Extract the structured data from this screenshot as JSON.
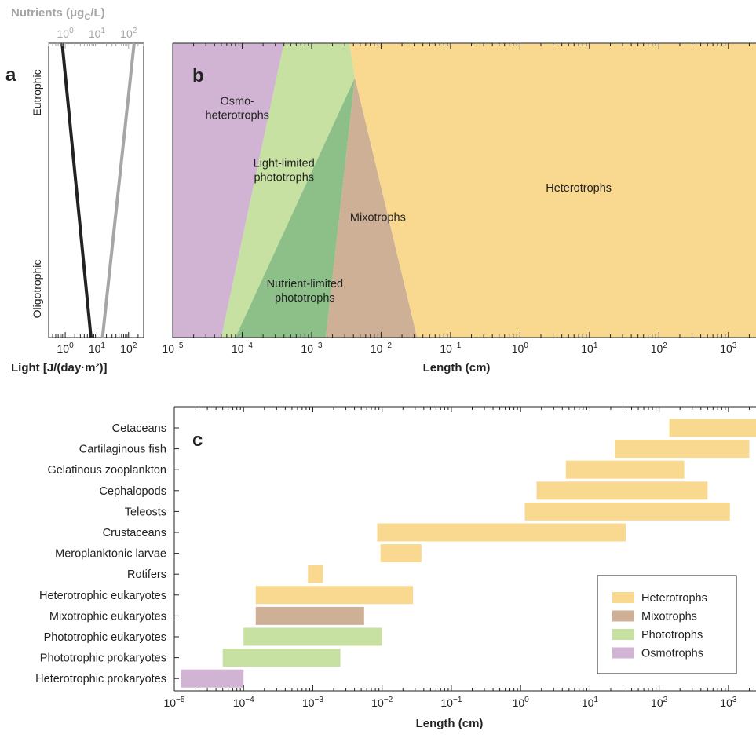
{
  "colors": {
    "heterotrophs": "#F8D98F",
    "mixotrophs": "#CDB095",
    "phototrophs": "#C6E1A2",
    "nutrient_phototrophs": "#8DBF88",
    "osmotrophs": "#D1B3D4",
    "light_line": "#222222",
    "nutrient_line": "#A6A6A6",
    "nutrient_text": "#A6A6A6"
  },
  "chart_data": [
    {
      "id": "a",
      "panel_label": "a",
      "type": "line",
      "xscale": "log",
      "xlim": [
        0.3,
        300
      ],
      "xlabel": "Light [J/(day·m²)]",
      "top_axis_label": "Nutrients (μg_C/L)",
      "xticks_bottom": [
        {
          "exp": "0"
        },
        {
          "exp": "1"
        },
        {
          "exp": "2"
        }
      ],
      "xticks_top": [
        {
          "exp": "0"
        },
        {
          "exp": "1"
        },
        {
          "exp": "2"
        }
      ],
      "y_categories": [
        "Eutrophic",
        "Oligotrophic"
      ],
      "series": [
        {
          "role": "light",
          "x_top": 0.8,
          "x_bottom": 6.5
        },
        {
          "role": "nutrients",
          "x_top": 150,
          "x_bottom": 15
        }
      ]
    },
    {
      "id": "b",
      "panel_label": "b",
      "type": "area",
      "xscale": "log",
      "xlim": [
        1e-05,
        2500
      ],
      "xlabel": "Length (cm)",
      "xticks": [
        {
          "exp": "−5"
        },
        {
          "exp": "−4"
        },
        {
          "exp": "−3"
        },
        {
          "exp": "−2"
        },
        {
          "exp": "−1"
        },
        {
          "exp": "0"
        },
        {
          "exp": "1"
        },
        {
          "exp": "2"
        },
        {
          "exp": "3"
        }
      ],
      "boundaries": {
        "osmo_light": {
          "top": 0.0004,
          "bottom": 5e-05
        },
        "light_nutrient": {
          "top": 0.0042,
          "bottom": 8e-05
        },
        "mixo_left": {
          "top": 0.0042,
          "bottom": 0.0016
        },
        "hetero_left": {
          "top": 0.0035,
          "bottom": 0.033
        }
      },
      "regions": [
        {
          "key": "osmotrophs",
          "lines": [
            "Osmo-",
            "heterotrophs"
          ],
          "lx": 8.5e-05,
          "ly": 0.22
        },
        {
          "key": "light",
          "lines": [
            "Light-limited",
            "phototrophs"
          ],
          "lx": 0.0004,
          "ly": 0.43
        },
        {
          "key": "mixotrophs",
          "lines": [
            "Mixotrophs"
          ],
          "lx": 0.009,
          "ly": 0.59
        },
        {
          "key": "nutrient",
          "lines": [
            "Nutrient-limited",
            "phototrophs"
          ],
          "lx": 0.0008,
          "ly": 0.84
        },
        {
          "key": "heterotrophs",
          "lines": [
            "Heterotrophs"
          ],
          "lx": 7,
          "ly": 0.49
        }
      ]
    },
    {
      "id": "c",
      "panel_label": "c",
      "type": "bar",
      "orientation": "horizontal",
      "xscale": "log",
      "xlim": [
        1e-05,
        2500
      ],
      "xlabel": "Length (cm)",
      "xticks": [
        {
          "exp": "−5"
        },
        {
          "exp": "−4"
        },
        {
          "exp": "−3"
        },
        {
          "exp": "−2"
        },
        {
          "exp": "−1"
        },
        {
          "exp": "0"
        },
        {
          "exp": "1"
        },
        {
          "exp": "2"
        },
        {
          "exp": "3"
        }
      ],
      "categories": [
        {
          "name": "Cetaceans",
          "min": 140,
          "max": 2500,
          "group": "heterotrophs"
        },
        {
          "name": "Cartilaginous fish",
          "min": 23,
          "max": 2000,
          "group": "heterotrophs"
        },
        {
          "name": "Gelatinous zooplankton",
          "min": 4.5,
          "max": 230,
          "group": "heterotrophs"
        },
        {
          "name": "Cephalopods",
          "min": 1.7,
          "max": 500,
          "group": "heterotrophs"
        },
        {
          "name": "Teleosts",
          "min": 1.15,
          "max": 1050,
          "group": "heterotrophs"
        },
        {
          "name": "Crustaceans",
          "min": 0.0085,
          "max": 33,
          "group": "heterotrophs"
        },
        {
          "name": "Meroplanktonic larvae",
          "min": 0.0095,
          "max": 0.037,
          "group": "heterotrophs"
        },
        {
          "name": "Rotifers",
          "min": 0.00085,
          "max": 0.0014,
          "group": "heterotrophs"
        },
        {
          "name": "Heterotrophic eukaryotes",
          "min": 0.00015,
          "max": 0.028,
          "group": "heterotrophs"
        },
        {
          "name": "Mixotrophic eukaryotes",
          "min": 0.00015,
          "max": 0.0055,
          "group": "mixotrophs"
        },
        {
          "name": "Phototrophic eukaryotes",
          "min": 0.0001,
          "max": 0.01,
          "group": "phototrophs"
        },
        {
          "name": "Phototrophic prokaryotes",
          "min": 5e-05,
          "max": 0.0025,
          "group": "phototrophs"
        },
        {
          "name": "Heterotrophic prokaryotes",
          "min": 1.25e-05,
          "max": 0.0001,
          "group": "osmotrophs"
        }
      ],
      "legend": {
        "position": "bottom-right",
        "entries": [
          {
            "label": "Heterotrophs",
            "group": "heterotrophs"
          },
          {
            "label": "Mixotrophs",
            "group": "mixotrophs"
          },
          {
            "label": "Phototrophs",
            "group": "phototrophs"
          },
          {
            "label": "Osmotrophs",
            "group": "osmotrophs"
          }
        ]
      }
    }
  ]
}
